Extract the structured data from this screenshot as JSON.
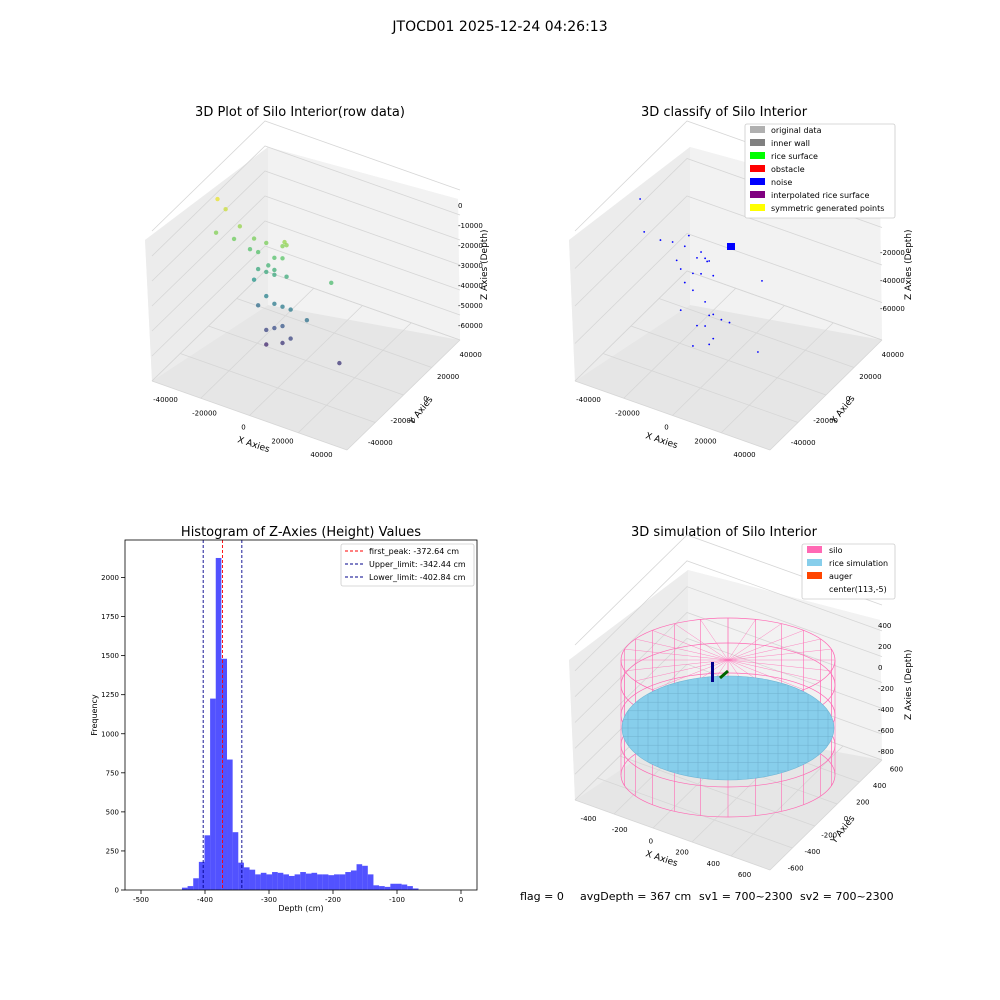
{
  "suptitle": "JTOCD01 2025-12-24 04:26:13",
  "footer": {
    "flag": "flag = 0",
    "avg": "avgDepth = 367 cm",
    "sv1": "sv1 = 700~2300",
    "sv2": "sv2 = 700~2300"
  },
  "chart_data": [
    {
      "type": "scatter3d",
      "title": "3D Plot of Silo Interior(row data)",
      "xlabel": "X Axies",
      "ylabel": "Y Axies",
      "zlabel": "Z Axies (Depth)",
      "xticks": [
        "-40000",
        "-20000",
        "0",
        "20000",
        "40000"
      ],
      "yticks": [
        "-40000",
        "-20000",
        "0",
        "20000",
        "40000"
      ],
      "zticks": [
        "0",
        "-10000",
        "-20000",
        "-30000",
        "-40000",
        "-50000",
        "-60000"
      ],
      "colormap": "viridis",
      "points": [
        {
          "x": -38000,
          "y": -30000,
          "z": -2000
        },
        {
          "x": -34000,
          "y": -30000,
          "z": -5000
        },
        {
          "x": -35000,
          "y": -38000,
          "z": -12000
        },
        {
          "x": -27000,
          "y": -30000,
          "z": -10000
        },
        {
          "x": -28000,
          "y": -34000,
          "z": -14000
        },
        {
          "x": -20000,
          "y": -30000,
          "z": -13000
        },
        {
          "x": -14000,
          "y": -30000,
          "z": -13000
        },
        {
          "x": -18000,
          "y": -30000,
          "z": -18000
        },
        {
          "x": -22000,
          "y": -30000,
          "z": -18000
        },
        {
          "x": -10000,
          "y": -30000,
          "z": -18000
        },
        {
          "x": -6000,
          "y": -30000,
          "z": -17000
        },
        {
          "x": -13000,
          "y": -30000,
          "z": -22000
        },
        {
          "x": -10000,
          "y": -30000,
          "z": -23000
        },
        {
          "x": -18000,
          "y": -30000,
          "z": -25000
        },
        {
          "x": -14000,
          "y": -30000,
          "z": -25000
        },
        {
          "x": -10000,
          "y": -30000,
          "z": -25000
        },
        {
          "x": -4000,
          "y": -30000,
          "z": -24000
        },
        {
          "x": -20000,
          "y": -30000,
          "z": -30000
        },
        {
          "x": -14000,
          "y": -30000,
          "z": -35000
        },
        {
          "x": -10000,
          "y": -30000,
          "z": -37000
        },
        {
          "x": -6000,
          "y": -30000,
          "z": -37000
        },
        {
          "x": -2000,
          "y": -30000,
          "z": -37000
        },
        {
          "x": -18000,
          "y": -30000,
          "z": -40000
        },
        {
          "x": 6000,
          "y": -30000,
          "z": -39000
        },
        {
          "x": -6000,
          "y": -30000,
          "z": -45000
        },
        {
          "x": -10000,
          "y": -30000,
          "z": -47000
        },
        {
          "x": -2000,
          "y": -30000,
          "z": -49000
        },
        {
          "x": -14000,
          "y": -30000,
          "z": -49000
        },
        {
          "x": -6000,
          "y": -30000,
          "z": -52000
        },
        {
          "x": -14000,
          "y": -30000,
          "z": -55000
        },
        {
          "x": 22000,
          "y": -30000,
          "z": -52000
        },
        {
          "x": 18000,
          "y": -30000,
          "z": -20000
        },
        {
          "x": -6000,
          "y": -30000,
          "z": -12000
        },
        {
          "x": -4000,
          "y": -30000,
          "z": -11000
        },
        {
          "x": -5000,
          "y": -30000,
          "z": -10000
        }
      ]
    },
    {
      "type": "scatter3d",
      "title": "3D classify of Silo Interior",
      "xlabel": "X Axies",
      "ylabel": "Y Axies",
      "zlabel": "Z Axies (Depth)",
      "xticks": [
        "-40000",
        "-20000",
        "0",
        "20000",
        "40000"
      ],
      "yticks": [
        "-40000",
        "-20000",
        "0",
        "20000",
        "40000"
      ],
      "zticks": [
        "-20000",
        "-40000",
        "-60000"
      ],
      "legend": [
        {
          "label": "original data",
          "color": "#b0b0b0"
        },
        {
          "label": "inner wall",
          "color": "#808080"
        },
        {
          "label": "rice surface",
          "color": "#00ff00"
        },
        {
          "label": "obstacle",
          "color": "#ff0000"
        },
        {
          "label": "noise",
          "color": "#0000ff"
        },
        {
          "label": "interpolated rice surface",
          "color": "#800080"
        },
        {
          "label": "symmetric generated points",
          "color": "#ffff00"
        }
      ],
      "legend_loc": "upper right",
      "points": [
        {
          "x": -38000,
          "y": -30000,
          "z": -2000
        },
        {
          "x": -36000,
          "y": -30000,
          "z": -15000
        },
        {
          "x": -28000,
          "y": -30000,
          "z": -16000
        },
        {
          "x": -22000,
          "y": -30000,
          "z": -15000
        },
        {
          "x": -16000,
          "y": -30000,
          "z": -15000
        },
        {
          "x": -8000,
          "y": -30000,
          "z": -15000
        },
        {
          "x": -10000,
          "y": -30000,
          "z": -18000
        },
        {
          "x": -6000,
          "y": -30000,
          "z": -17000
        },
        {
          "x": -4000,
          "y": -30000,
          "z": -17500
        },
        {
          "x": -5000,
          "y": -30000,
          "z": -18000
        },
        {
          "x": -20000,
          "y": -30000,
          "z": -22000
        },
        {
          "x": -18000,
          "y": -30000,
          "z": -25000
        },
        {
          "x": -12000,
          "y": -30000,
          "z": -25000
        },
        {
          "x": -8000,
          "y": -30000,
          "z": -24000
        },
        {
          "x": -2000,
          "y": -30000,
          "z": -23000
        },
        {
          "x": -16000,
          "y": -30000,
          "z": -30000
        },
        {
          "x": -12000,
          "y": -30000,
          "z": -32000
        },
        {
          "x": -6000,
          "y": -30000,
          "z": -35000
        },
        {
          "x": -2000,
          "y": -30000,
          "z": -39000
        },
        {
          "x": 2000,
          "y": -30000,
          "z": -40000
        },
        {
          "x": -4000,
          "y": -30000,
          "z": -40000
        },
        {
          "x": 6000,
          "y": -30000,
          "z": -40000
        },
        {
          "x": -18000,
          "y": -30000,
          "z": -42000
        },
        {
          "x": -6000,
          "y": -30000,
          "z": -45000
        },
        {
          "x": -10000,
          "y": -30000,
          "z": -46000
        },
        {
          "x": -2000,
          "y": -30000,
          "z": -49000
        },
        {
          "x": -4000,
          "y": -30000,
          "z": -52000
        },
        {
          "x": -12000,
          "y": -30000,
          "z": -55000
        },
        {
          "x": 20000,
          "y": -30000,
          "z": -48000
        },
        {
          "x": 22000,
          "y": -30000,
          "z": -18000
        },
        {
          "x": -14000,
          "y": -30000,
          "z": -10000
        }
      ]
    },
    {
      "type": "bar",
      "title": "Histogram of Z-Axies (Height) Values",
      "xlabel": "Depth (cm)",
      "ylabel": "Frequency",
      "xlim": [
        -525,
        25
      ],
      "ylim": [
        0,
        2240
      ],
      "xticks": [
        -500,
        -400,
        -300,
        -200,
        -100,
        0
      ],
      "yticks": [
        0,
        250,
        500,
        750,
        1000,
        1250,
        1500,
        1750,
        2000
      ],
      "bin_width": 8.8,
      "bins": [
        {
          "x0": -436,
          "v": 15
        },
        {
          "x0": -427.2,
          "v": 25
        },
        {
          "x0": -418.4,
          "v": 75
        },
        {
          "x0": -409.6,
          "v": 180
        },
        {
          "x0": -400.8,
          "v": 350
        },
        {
          "x0": -392,
          "v": 1225
        },
        {
          "x0": -383.2,
          "v": 2125
        },
        {
          "x0": -374.4,
          "v": 1480
        },
        {
          "x0": -365.6,
          "v": 835
        },
        {
          "x0": -356.8,
          "v": 370
        },
        {
          "x0": -348,
          "v": 175
        },
        {
          "x0": -339.2,
          "v": 145
        },
        {
          "x0": -330.4,
          "v": 130
        },
        {
          "x0": -321.6,
          "v": 100
        },
        {
          "x0": -312.8,
          "v": 110
        },
        {
          "x0": -304,
          "v": 100
        },
        {
          "x0": -295.2,
          "v": 115
        },
        {
          "x0": -286.4,
          "v": 110
        },
        {
          "x0": -277.6,
          "v": 100
        },
        {
          "x0": -268.8,
          "v": 90
        },
        {
          "x0": -260,
          "v": 100
        },
        {
          "x0": -251.2,
          "v": 115
        },
        {
          "x0": -242.4,
          "v": 105
        },
        {
          "x0": -233.6,
          "v": 110
        },
        {
          "x0": -224.8,
          "v": 100
        },
        {
          "x0": -216,
          "v": 100
        },
        {
          "x0": -207.2,
          "v": 95
        },
        {
          "x0": -198.4,
          "v": 100
        },
        {
          "x0": -189.6,
          "v": 100
        },
        {
          "x0": -180.8,
          "v": 115
        },
        {
          "x0": -172,
          "v": 125
        },
        {
          "x0": -163.2,
          "v": 165
        },
        {
          "x0": -154.4,
          "v": 155
        },
        {
          "x0": -145.6,
          "v": 100
        },
        {
          "x0": -136.8,
          "v": 30
        },
        {
          "x0": -128,
          "v": 25
        },
        {
          "x0": -119.2,
          "v": 20
        },
        {
          "x0": -110.4,
          "v": 40
        },
        {
          "x0": -101.6,
          "v": 40
        },
        {
          "x0": -92.8,
          "v": 35
        },
        {
          "x0": -84,
          "v": 25
        },
        {
          "x0": -75.2,
          "v": 10
        }
      ],
      "vlines": [
        {
          "label": "first_peak: -372.64 cm",
          "x": -372.64,
          "color": "#ff0000"
        },
        {
          "label": "Upper_limit: -342.44 cm",
          "x": -342.44,
          "color": "#00008b"
        },
        {
          "label": "Lower_limit: -402.84 cm",
          "x": -402.84,
          "color": "#00008b"
        }
      ],
      "legend_loc": "upper right"
    },
    {
      "type": "surface3d",
      "title": "3D simulation of Silo Interior",
      "xlabel": "X Axies",
      "ylabel": "Y Axies",
      "zlabel": "Z Axies (Depth)",
      "xticks": [
        "-400",
        "-200",
        "0",
        "200",
        "400",
        "600"
      ],
      "yticks": [
        "-600",
        "-400",
        "-200",
        "0",
        "200",
        "400",
        "600"
      ],
      "zticks": [
        "400",
        "200",
        "0",
        "-200",
        "-400",
        "-600",
        "-800"
      ],
      "legend": [
        {
          "label": "silo",
          "color": "#ff69b4"
        },
        {
          "label": "rice simulation",
          "color": "#87ceeb"
        },
        {
          "label": "auger",
          "color": "#ff4500"
        },
        {
          "label": "center(113,-5)",
          "color": "#ffffff"
        }
      ],
      "legend_loc": "upper right"
    }
  ]
}
